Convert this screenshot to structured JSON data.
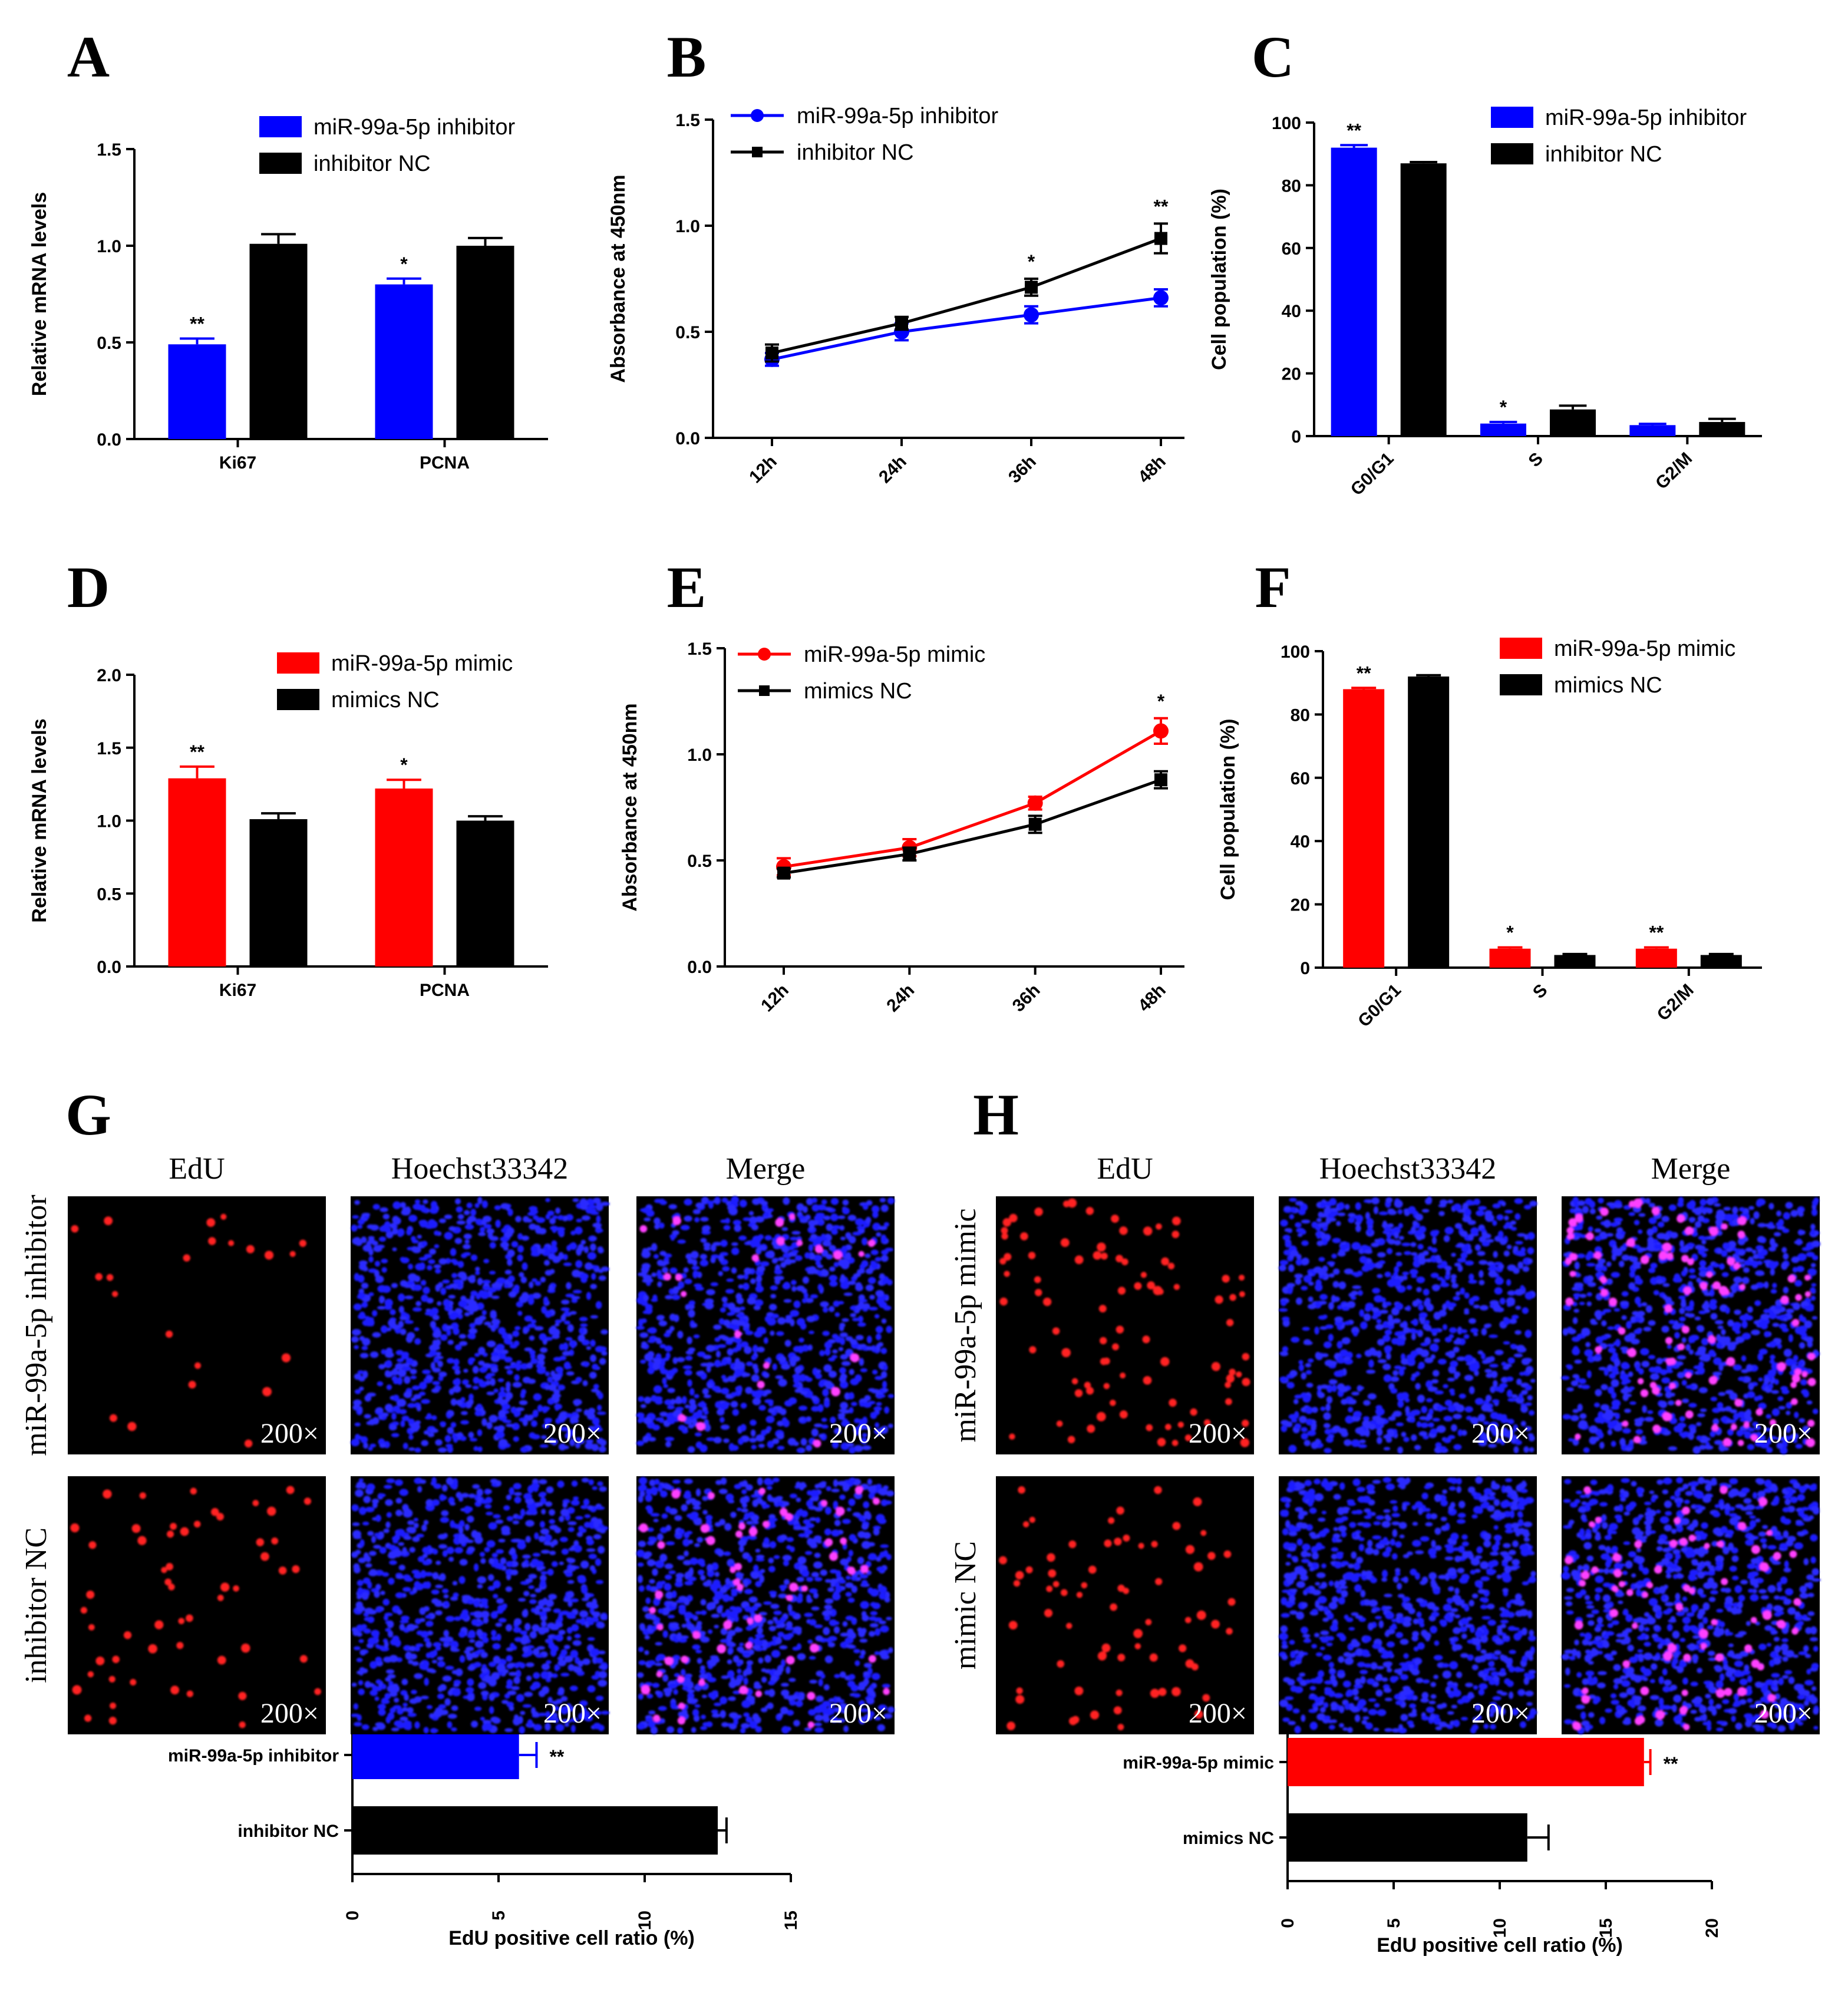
{
  "colors": {
    "inhibitor": "#0000ff",
    "mimic": "#ff0000",
    "control": "#000000"
  },
  "chart_data": [
    {
      "id": "A",
      "type": "bar",
      "title": "",
      "ylabel": "Relative mRNA levels",
      "xlabel": "",
      "ylim": [
        0,
        1.5
      ],
      "yticks": [
        "0.0",
        "0.5",
        "1.0",
        "1.5"
      ],
      "categories": [
        "Ki67",
        "PCNA"
      ],
      "series": [
        {
          "name": "miR-99a-5p inhibitor",
          "color": "inhibitor",
          "values": [
            0.49,
            0.8
          ],
          "errors": [
            0.03,
            0.03
          ]
        },
        {
          "name": "inhibitor NC",
          "color": "control",
          "values": [
            1.01,
            1.0
          ],
          "errors": [
            0.05,
            0.04
          ]
        }
      ],
      "significance": [
        "**",
        "*"
      ]
    },
    {
      "id": "B",
      "type": "line",
      "ylabel": "Absorbance at 450nm",
      "xlabel": "",
      "ylim": [
        0,
        1.5
      ],
      "yticks": [
        "0.0",
        "0.5",
        "1.0",
        "1.5"
      ],
      "categories": [
        "12h",
        "24h",
        "36h",
        "48h"
      ],
      "series": [
        {
          "name": "miR-99a-5p inhibitor",
          "color": "inhibitor",
          "values": [
            0.37,
            0.5,
            0.58,
            0.66
          ],
          "errors": [
            0.03,
            0.04,
            0.04,
            0.04
          ]
        },
        {
          "name": "inhibitor NC",
          "color": "control",
          "values": [
            0.4,
            0.54,
            0.71,
            0.94
          ],
          "errors": [
            0.04,
            0.03,
            0.04,
            0.07
          ]
        }
      ],
      "significance": [
        "",
        "",
        "*",
        "**"
      ]
    },
    {
      "id": "C",
      "type": "bar",
      "ylabel": "Cell population (%)",
      "xlabel": "",
      "ylim": [
        0,
        100
      ],
      "yticks": [
        "0",
        "20",
        "40",
        "60",
        "80",
        "100"
      ],
      "categories": [
        "G0/G1",
        "S",
        "G2/M"
      ],
      "series": [
        {
          "name": "miR-99a-5p inhibitor",
          "color": "inhibitor",
          "values": [
            92,
            4,
            3.5
          ],
          "errors": [
            0.8,
            0.5,
            0.4
          ]
        },
        {
          "name": "inhibitor NC",
          "color": "control",
          "values": [
            87,
            8.5,
            4.5
          ],
          "errors": [
            0.4,
            1.2,
            1.0
          ]
        }
      ],
      "significance": [
        "**",
        "*",
        ""
      ]
    },
    {
      "id": "D",
      "type": "bar",
      "ylabel": "Relative mRNA levels",
      "xlabel": "",
      "ylim": [
        0,
        2.0
      ],
      "yticks": [
        "0.0",
        "0.5",
        "1.0",
        "1.5",
        "2.0"
      ],
      "categories": [
        "Ki67",
        "PCNA"
      ],
      "series": [
        {
          "name": "miR-99a-5p mimic",
          "color": "mimic",
          "values": [
            1.29,
            1.22
          ],
          "errors": [
            0.08,
            0.06
          ]
        },
        {
          "name": "mimics NC",
          "color": "control",
          "values": [
            1.01,
            1.0
          ],
          "errors": [
            0.04,
            0.03
          ]
        }
      ],
      "significance": [
        "**",
        "*"
      ]
    },
    {
      "id": "E",
      "type": "line",
      "ylabel": "Absorbance at 450nm",
      "xlabel": "",
      "ylim": [
        0,
        1.5
      ],
      "yticks": [
        "0.0",
        "0.5",
        "1.0",
        "1.5"
      ],
      "categories": [
        "12h",
        "24h",
        "36h",
        "48h"
      ],
      "series": [
        {
          "name": "miR-99a-5p mimic",
          "color": "mimic",
          "values": [
            0.47,
            0.56,
            0.77,
            1.11
          ],
          "errors": [
            0.04,
            0.04,
            0.03,
            0.06
          ]
        },
        {
          "name": "mimics NC",
          "color": "control",
          "values": [
            0.44,
            0.53,
            0.67,
            0.88
          ],
          "errors": [
            0.02,
            0.03,
            0.04,
            0.04
          ]
        }
      ],
      "significance": [
        "",
        "",
        "",
        "*"
      ]
    },
    {
      "id": "F",
      "type": "bar",
      "ylabel": "Cell population (%)",
      "xlabel": "",
      "ylim": [
        0,
        100
      ],
      "yticks": [
        "0",
        "20",
        "40",
        "60",
        "80",
        "100"
      ],
      "categories": [
        "G0/G1",
        "S",
        "G2/M"
      ],
      "series": [
        {
          "name": "miR-99a-5p mimic",
          "color": "mimic",
          "values": [
            88,
            6,
            6
          ],
          "errors": [
            0.4,
            0.4,
            0.4
          ]
        },
        {
          "name": "mimics NC",
          "color": "control",
          "values": [
            92,
            4,
            4
          ],
          "errors": [
            0.4,
            0.3,
            0.3
          ]
        }
      ],
      "significance": [
        "**",
        "*",
        "**"
      ]
    },
    {
      "id": "G",
      "type": "bar",
      "orientation": "horizontal",
      "xlabel": "EdU positive cell ratio (%)",
      "xlim": [
        0,
        15
      ],
      "xticks": [
        "0",
        "5",
        "10",
        "15"
      ],
      "categories": [
        "miR-99a-5p inhibitor",
        "inhibitor NC"
      ],
      "colors": [
        "inhibitor",
        "control"
      ],
      "values": [
        5.7,
        12.5
      ],
      "errors": [
        0.6,
        0.3
      ],
      "significance": [
        "**",
        ""
      ]
    },
    {
      "id": "H",
      "type": "bar",
      "orientation": "horizontal",
      "xlabel": "EdU positive cell ratio (%)",
      "xlim": [
        0,
        20
      ],
      "xticks": [
        "0",
        "5",
        "10",
        "15",
        "20"
      ],
      "categories": [
        "miR-99a-5p mimic",
        "mimics NC"
      ],
      "colors": [
        "mimic",
        "control"
      ],
      "values": [
        16.8,
        11.3
      ],
      "errors": [
        0.3,
        1.0
      ],
      "significance": [
        "**",
        ""
      ]
    }
  ],
  "panel_letters": [
    "A",
    "B",
    "C",
    "D",
    "E",
    "F",
    "G",
    "H"
  ],
  "micrographs": {
    "G": {
      "columns": [
        "EdU",
        "Hoechst33342",
        "Merge"
      ],
      "rows": [
        "miR-99a-5p inhibitor",
        "inhibitor NC"
      ],
      "magnification": "200×"
    },
    "H": {
      "columns": [
        "EdU",
        "Hoechst33342",
        "Merge"
      ],
      "rows": [
        "miR-99a-5p mimic",
        "mimic NC"
      ],
      "magnification": "200×"
    }
  }
}
